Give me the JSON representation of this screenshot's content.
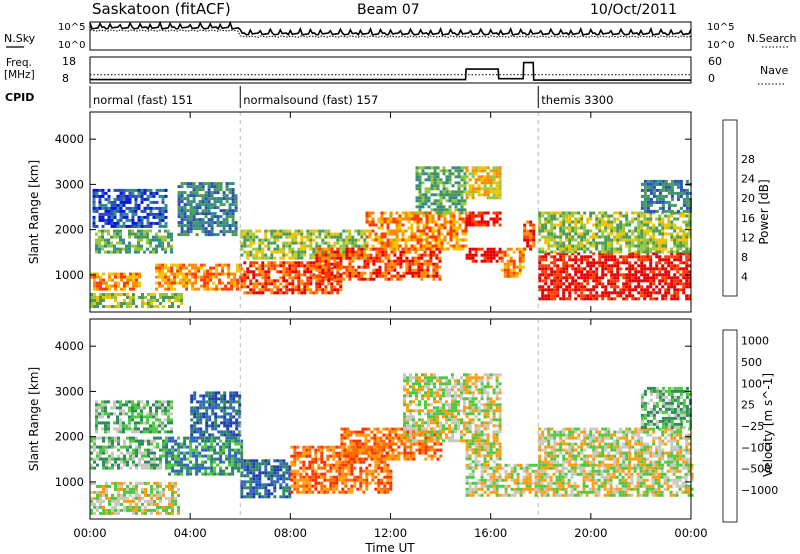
{
  "header": {
    "station": "Saskatoon (fitACF)",
    "beam": "Beam 07",
    "date": "10/Oct/2011"
  },
  "meta_panel": {
    "nsky_label": "N.Sky",
    "nsearch_label": "N.Search",
    "nsky_ticks": [
      "10^5",
      "10^0"
    ],
    "nsearch_ticks": [
      "10^5",
      "10^0"
    ],
    "freq_label": "Freq.",
    "freq_unit": "[MHz]",
    "freq_ticks": [
      "18",
      "8"
    ],
    "nave_label": "Nave",
    "nave_ticks": [
      "60",
      "0"
    ],
    "cpid_label": "CPID",
    "cpid_segments": [
      {
        "label": "normal (fast) 151",
        "start_h": 0,
        "end_h": 6
      },
      {
        "label": "normalsound (fast) 157",
        "start_h": 6,
        "end_h": 17.9
      },
      {
        "label": "themis 3300",
        "start_h": 17.9,
        "end_h": 24
      }
    ],
    "freq_mhz": [
      [
        0,
        9.4
      ],
      [
        6,
        9.4
      ],
      [
        15,
        9.4
      ],
      [
        15.02,
        13.8
      ],
      [
        16.3,
        13.8
      ],
      [
        16.32,
        9.8
      ],
      [
        17.3,
        9.8
      ],
      [
        17.32,
        16.5
      ],
      [
        17.7,
        16.5
      ],
      [
        17.72,
        9.2
      ],
      [
        24,
        9.2
      ]
    ],
    "nave": [
      [
        0,
        18
      ],
      [
        24,
        18
      ]
    ]
  },
  "chart_data": [
    {
      "type": "heatmap",
      "name": "power",
      "xlabel": "Time UT",
      "ylabel": "Slant Range [km]",
      "xlim": [
        0,
        24
      ],
      "ylim": [
        180,
        4600
      ],
      "x_ticks": [
        "00:00",
        "04:00",
        "08:00",
        "12:00",
        "16:00",
        "20:00",
        "00:00"
      ],
      "y_ticks": [
        1000,
        2000,
        3000,
        4000
      ],
      "colorbar": {
        "label": "Power [dB]",
        "ticks": [
          "4",
          "8",
          "12",
          "16",
          "20",
          "24",
          "28"
        ],
        "colors": [
          "#0018e0",
          "#2f4fb8",
          "#2f8a8a",
          "#4c9a55",
          "#93c83c",
          "#f2c200",
          "#ff8a00",
          "#ff3c00",
          "#e60000"
        ]
      },
      "regions": [
        {
          "t": [
            0,
            3.6
          ],
          "r": [
            300,
            600
          ],
          "level": 4
        },
        {
          "t": [
            0,
            2
          ],
          "r": [
            700,
            1050
          ],
          "level": 6
        },
        {
          "t": [
            0.2,
            3.2
          ],
          "r": [
            1500,
            2000
          ],
          "level": 3
        },
        {
          "t": [
            0.1,
            3
          ],
          "r": [
            2100,
            2900
          ],
          "level": 1
        },
        {
          "t": [
            3.5,
            5.8
          ],
          "r": [
            1900,
            3050
          ],
          "level": 2
        },
        {
          "t": [
            2.6,
            6
          ],
          "r": [
            700,
            1250
          ],
          "level": 6
        },
        {
          "t": [
            6,
            10
          ],
          "r": [
            600,
            1300
          ],
          "level": 7
        },
        {
          "t": [
            6,
            11
          ],
          "r": [
            1400,
            2000
          ],
          "level": 4
        },
        {
          "t": [
            9,
            14
          ],
          "r": [
            900,
            1600
          ],
          "level": 7
        },
        {
          "t": [
            11,
            15
          ],
          "r": [
            1600,
            2400
          ],
          "level": 6
        },
        {
          "t": [
            13,
            15
          ],
          "r": [
            2400,
            3400
          ],
          "level": 3
        },
        {
          "t": [
            15,
            16.4
          ],
          "r": [
            2100,
            2400
          ],
          "level": 8
        },
        {
          "t": [
            15,
            16.4
          ],
          "r": [
            1300,
            1600
          ],
          "level": 8
        },
        {
          "t": [
            15,
            16.4
          ],
          "r": [
            2700,
            3400
          ],
          "level": 5
        },
        {
          "t": [
            16.4,
            17.3
          ],
          "r": [
            1000,
            1600
          ],
          "level": 6
        },
        {
          "t": [
            17.3,
            17.7
          ],
          "r": [
            1600,
            2200
          ],
          "level": 7
        },
        {
          "t": [
            17.9,
            24
          ],
          "r": [
            500,
            1500
          ],
          "level": 8
        },
        {
          "t": [
            17.9,
            24
          ],
          "r": [
            1500,
            2400
          ],
          "level": 4
        },
        {
          "t": [
            22,
            24
          ],
          "r": [
            2400,
            3100
          ],
          "level": 2
        }
      ]
    },
    {
      "type": "heatmap",
      "name": "velocity",
      "xlabel": "Time UT",
      "ylabel": "Slant Range [km]",
      "xlim": [
        0,
        24
      ],
      "ylim": [
        180,
        4600
      ],
      "x_ticks": [
        "00:00",
        "04:00",
        "08:00",
        "12:00",
        "16:00",
        "20:00",
        "00:00"
      ],
      "y_ticks": [
        1000,
        2000,
        3000,
        4000
      ],
      "colorbar": {
        "label": "Velocity [m s^-1]",
        "ticks": [
          "1000",
          "500",
          "100",
          "25",
          "−25",
          "−100",
          "−500",
          "−1000"
        ],
        "colors": [
          "#1f3fa8",
          "#2f62c0",
          "#2e8a5c",
          "#4ec840",
          "#c8c8c0",
          "#ff9c10",
          "#ff6a00",
          "#ff3000",
          "#e00000"
        ]
      },
      "regions": [
        {
          "t": [
            0,
            3.5
          ],
          "r": [
            300,
            1000
          ],
          "level": 4
        },
        {
          "t": [
            0,
            3
          ],
          "r": [
            1300,
            2000
          ],
          "level": 3
        },
        {
          "t": [
            0.2,
            3.2
          ],
          "r": [
            2100,
            2800
          ],
          "level": 3
        },
        {
          "t": [
            3,
            6
          ],
          "r": [
            1200,
            2000
          ],
          "level": 2
        },
        {
          "t": [
            4,
            6
          ],
          "r": [
            2000,
            3000
          ],
          "level": 1
        },
        {
          "t": [
            6,
            8
          ],
          "r": [
            700,
            1500
          ],
          "level": 1
        },
        {
          "t": [
            8,
            12
          ],
          "r": [
            800,
            1800
          ],
          "level": 6
        },
        {
          "t": [
            10,
            14
          ],
          "r": [
            1500,
            2200
          ],
          "level": 6
        },
        {
          "t": [
            12.5,
            15
          ],
          "r": [
            1900,
            3400
          ],
          "level": 4
        },
        {
          "t": [
            15,
            16.4
          ],
          "r": [
            1300,
            3400
          ],
          "level": 4
        },
        {
          "t": [
            15,
            24
          ],
          "r": [
            700,
            1400
          ],
          "level": 4
        },
        {
          "t": [
            17.9,
            24
          ],
          "r": [
            1400,
            2200
          ],
          "level": 4
        },
        {
          "t": [
            22,
            24
          ],
          "r": [
            2200,
            3100
          ],
          "level": 3
        }
      ]
    }
  ]
}
